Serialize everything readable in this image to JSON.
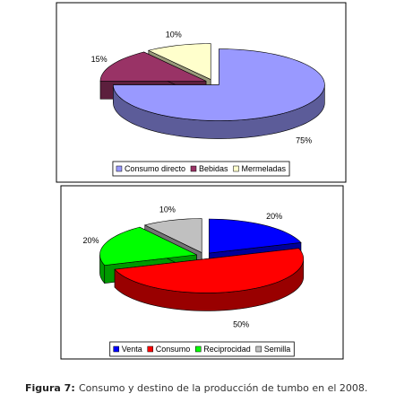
{
  "chart_data": [
    {
      "type": "pie3d",
      "categories": [
        "Consumo directo",
        "Bebidas",
        "Mermeladas"
      ],
      "values": [
        75,
        15,
        10
      ],
      "value_labels": [
        "75%",
        "15%",
        "10%"
      ],
      "colors": [
        "#9999ff",
        "#993366",
        "#ffffcc"
      ],
      "legend": "bottom"
    },
    {
      "type": "pie3d",
      "categories": [
        "Venta",
        "Consumo",
        "Reciprocidad",
        "Semilla"
      ],
      "values": [
        20,
        50,
        20,
        10
      ],
      "value_labels": [
        "20%",
        "50%",
        "20%",
        "10%"
      ],
      "colors": [
        "#0000ff",
        "#ff0000",
        "#00ff00",
        "#c0c0c0"
      ],
      "legend": "bottom"
    }
  ],
  "caption": {
    "label": "Figura 7:",
    "text": "Consumo y destino de la producción de tumbo en el 2008."
  }
}
